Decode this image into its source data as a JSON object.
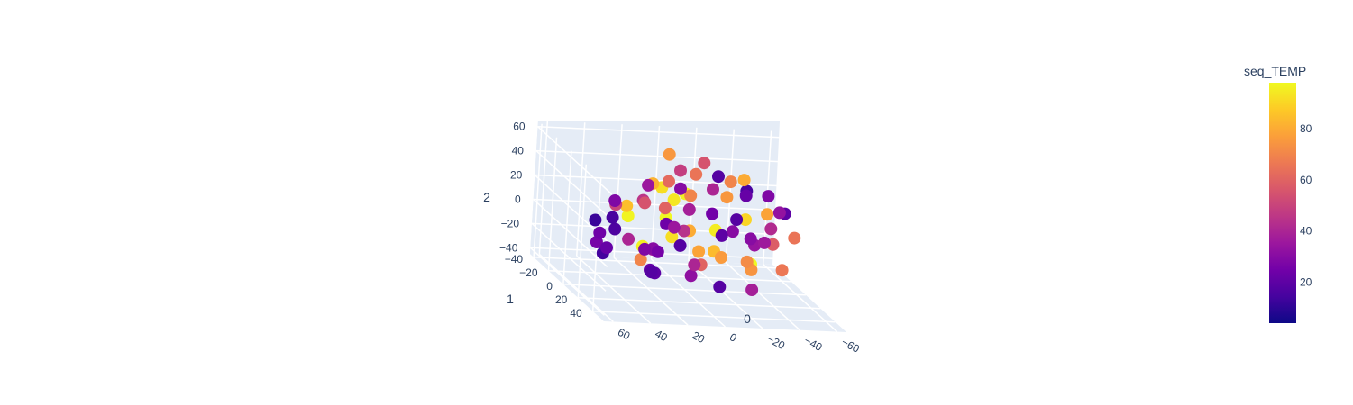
{
  "chart_data": {
    "type": "scatter3d",
    "axes": {
      "x": {
        "title": "0",
        "ticks": [
          "60",
          "40",
          "20",
          "0",
          "−20",
          "−40",
          "−60"
        ],
        "range": [
          -65,
          65
        ]
      },
      "y": {
        "title": "1",
        "ticks": [
          "−40",
          "−20",
          "0",
          "20",
          "40"
        ],
        "range": [
          -45,
          55
        ]
      },
      "z": {
        "title": "2",
        "ticks": [
          "60",
          "40",
          "20",
          "0",
          "−20",
          "−40"
        ],
        "range": [
          -45,
          65
        ]
      }
    },
    "grid": true,
    "colorbar": {
      "title": "seq_TEMP",
      "ticks": [
        "80",
        "60",
        "40",
        "20"
      ],
      "range": [
        4,
        98
      ],
      "colorscale": [
        "#0d0887",
        "#46039f",
        "#7201a8",
        "#9c179e",
        "#bd3786",
        "#d8576b",
        "#ed7953",
        "#fb9f3a",
        "#fdca26",
        "#f0f921"
      ]
    },
    "marker_size": 14,
    "points": [
      {
        "x": -5.2,
        "y": 3.0,
        "z": 61.5,
        "c": 55
      },
      {
        "x": 8.1,
        "y": -10.4,
        "z": 60.2,
        "c": 75
      },
      {
        "x": -12.3,
        "y": 5.1,
        "z": 52.0,
        "c": 18
      },
      {
        "x": 3.4,
        "y": -6.2,
        "z": 49.5,
        "c": 48
      },
      {
        "x": -20.1,
        "y": 2.7,
        "z": 46.8,
        "c": 70
      },
      {
        "x": 15.6,
        "y": 8.8,
        "z": 48.1,
        "c": 62
      },
      {
        "x": -30.2,
        "y": -4.4,
        "z": 45.0,
        "c": 80
      },
      {
        "x": 10.4,
        "y": 12.0,
        "z": 44.2,
        "c": 30
      },
      {
        "x": -8.7,
        "y": -15.0,
        "z": 42.3,
        "c": 65
      },
      {
        "x": -25.5,
        "y": 10.5,
        "z": 40.1,
        "c": 22
      },
      {
        "x": 22.0,
        "y": -2.0,
        "z": 38.5,
        "c": 35
      },
      {
        "x": -40.1,
        "y": 4.0,
        "z": 37.0,
        "c": 28
      },
      {
        "x": 2.5,
        "y": 6.5,
        "z": 36.0,
        "c": 70
      },
      {
        "x": -15.5,
        "y": -8.5,
        "z": 34.0,
        "c": 40
      },
      {
        "x": 30.4,
        "y": 15.2,
        "z": 33.0,
        "c": 55
      },
      {
        "x": -35.0,
        "y": -12.0,
        "z": 32.0,
        "c": 15
      },
      {
        "x": 12.0,
        "y": -20.0,
        "z": 30.5,
        "c": 82
      },
      {
        "x": -4.0,
        "y": 20.0,
        "z": 29.0,
        "c": 25
      },
      {
        "x": 25.0,
        "y": 0.0,
        "z": 27.0,
        "c": 45
      },
      {
        "x": -45.0,
        "y": 8.0,
        "z": 26.0,
        "c": 33
      },
      {
        "x": 5.0,
        "y": -25.0,
        "z": 25.0,
        "c": 92
      },
      {
        "x": -18.0,
        "y": 18.0,
        "z": 24.0,
        "c": 18
      },
      {
        "x": 38.0,
        "y": -5.0,
        "z": 23.0,
        "c": 28
      },
      {
        "x": -28.0,
        "y": -20.0,
        "z": 22.0,
        "c": 75
      },
      {
        "x": 0.0,
        "y": 0.0,
        "z": 21.0,
        "c": 38
      },
      {
        "x": -52.0,
        "y": -2.0,
        "z": 20.0,
        "c": 20
      },
      {
        "x": 18.0,
        "y": 25.0,
        "z": 19.0,
        "c": 35
      },
      {
        "x": -10.0,
        "y": -30.0,
        "z": 18.0,
        "c": 96
      },
      {
        "x": 45.0,
        "y": 10.0,
        "z": 17.0,
        "c": 15
      },
      {
        "x": -38.0,
        "y": 15.0,
        "z": 16.0,
        "c": 42
      },
      {
        "x": 8.0,
        "y": -12.0,
        "z": 15.0,
        "c": 60
      },
      {
        "x": -22.0,
        "y": 28.0,
        "z": 14.0,
        "c": 30
      },
      {
        "x": 32.0,
        "y": -18.0,
        "z": 13.0,
        "c": 50
      },
      {
        "x": -48.0,
        "y": -15.0,
        "z": 12.0,
        "c": 78
      },
      {
        "x": 14.0,
        "y": 5.0,
        "z": 11.0,
        "c": 24
      },
      {
        "x": -6.0,
        "y": -35.0,
        "z": 10.0,
        "c": 94
      },
      {
        "x": 50.0,
        "y": 0.0,
        "z": 9.0,
        "c": 12
      },
      {
        "x": -32.0,
        "y": 22.0,
        "z": 8.0,
        "c": 36
      },
      {
        "x": 22.0,
        "y": -28.0,
        "z": 7.0,
        "c": 85
      },
      {
        "x": -14.0,
        "y": 10.0,
        "z": 6.0,
        "c": 20
      },
      {
        "x": 40.0,
        "y": 20.0,
        "z": 5.0,
        "c": 40
      },
      {
        "x": -55.0,
        "y": 5.0,
        "z": 4.0,
        "c": 65
      },
      {
        "x": 4.0,
        "y": -20.0,
        "z": 3.0,
        "c": 98
      },
      {
        "x": -26.0,
        "y": -5.0,
        "z": 2.0,
        "c": 30
      },
      {
        "x": 28.0,
        "y": 30.0,
        "z": 1.0,
        "c": 26
      },
      {
        "x": -42.0,
        "y": -28.0,
        "z": 0.0,
        "c": 90
      },
      {
        "x": 10.0,
        "y": 15.0,
        "z": -1.0,
        "c": 18
      },
      {
        "x": -2.0,
        "y": -10.0,
        "z": -2.0,
        "c": 44
      },
      {
        "x": 35.0,
        "y": -10.0,
        "z": -3.0,
        "c": 16
      },
      {
        "x": -20.0,
        "y": 30.0,
        "z": -4.0,
        "c": 72
      },
      {
        "x": 18.0,
        "y": -35.0,
        "z": -5.0,
        "c": 97
      },
      {
        "x": -36.0,
        "y": 0.0,
        "z": -6.0,
        "c": 34
      },
      {
        "x": 48.0,
        "y": 12.0,
        "z": -7.0,
        "c": 22
      },
      {
        "x": -10.0,
        "y": -22.0,
        "z": -8.0,
        "c": 80
      },
      {
        "x": 26.0,
        "y": 8.0,
        "z": -9.0,
        "c": 28
      },
      {
        "x": -50.0,
        "y": -10.0,
        "z": -10.0,
        "c": 58
      },
      {
        "x": 6.0,
        "y": 25.0,
        "z": -11.0,
        "c": 40
      },
      {
        "x": -28.0,
        "y": -32.0,
        "z": -12.0,
        "c": 95
      },
      {
        "x": 38.0,
        "y": -22.0,
        "z": -13.0,
        "c": 24
      },
      {
        "x": -16.0,
        "y": 6.0,
        "z": -14.0,
        "c": 76
      },
      {
        "x": 16.0,
        "y": -5.0,
        "z": -15.0,
        "c": 30
      },
      {
        "x": -44.0,
        "y": 18.0,
        "z": -16.0,
        "c": 66
      },
      {
        "x": 30.0,
        "y": 28.0,
        "z": -17.0,
        "c": 18
      },
      {
        "x": -4.0,
        "y": -30.0,
        "z": -18.0,
        "c": 92
      },
      {
        "x": 44.0,
        "y": -2.0,
        "z": -19.0,
        "c": 14
      },
      {
        "x": -30.0,
        "y": 12.0,
        "z": -20.0,
        "c": 74
      },
      {
        "x": 12.0,
        "y": -15.0,
        "z": -21.0,
        "c": 36
      },
      {
        "x": -22.0,
        "y": -18.0,
        "z": -22.0,
        "c": 84
      },
      {
        "x": 24.0,
        "y": 18.0,
        "z": -23.0,
        "c": 20
      },
      {
        "x": -8.0,
        "y": 0.0,
        "z": -24.0,
        "c": 60
      },
      {
        "x": 36.0,
        "y": -30.0,
        "z": -25.0,
        "c": 26
      },
      {
        "x": -38.0,
        "y": -8.0,
        "z": -26.0,
        "c": 98
      },
      {
        "x": 2.0,
        "y": 12.0,
        "z": -27.0,
        "c": 32
      },
      {
        "x": -18.0,
        "y": -28.0,
        "z": -28.0,
        "c": 78
      },
      {
        "x": 20.0,
        "y": 2.0,
        "z": -29.0,
        "c": 22
      },
      {
        "x": -26.0,
        "y": 24.0,
        "z": -30.0,
        "c": 38
      },
      {
        "x": 8.0,
        "y": -38.0,
        "z": -31.0,
        "c": 96
      },
      {
        "x": -12.0,
        "y": 16.0,
        "z": -33.0,
        "c": 18
      },
      {
        "x": 14.0,
        "y": -25.0,
        "z": -35.0,
        "c": 70
      }
    ]
  }
}
